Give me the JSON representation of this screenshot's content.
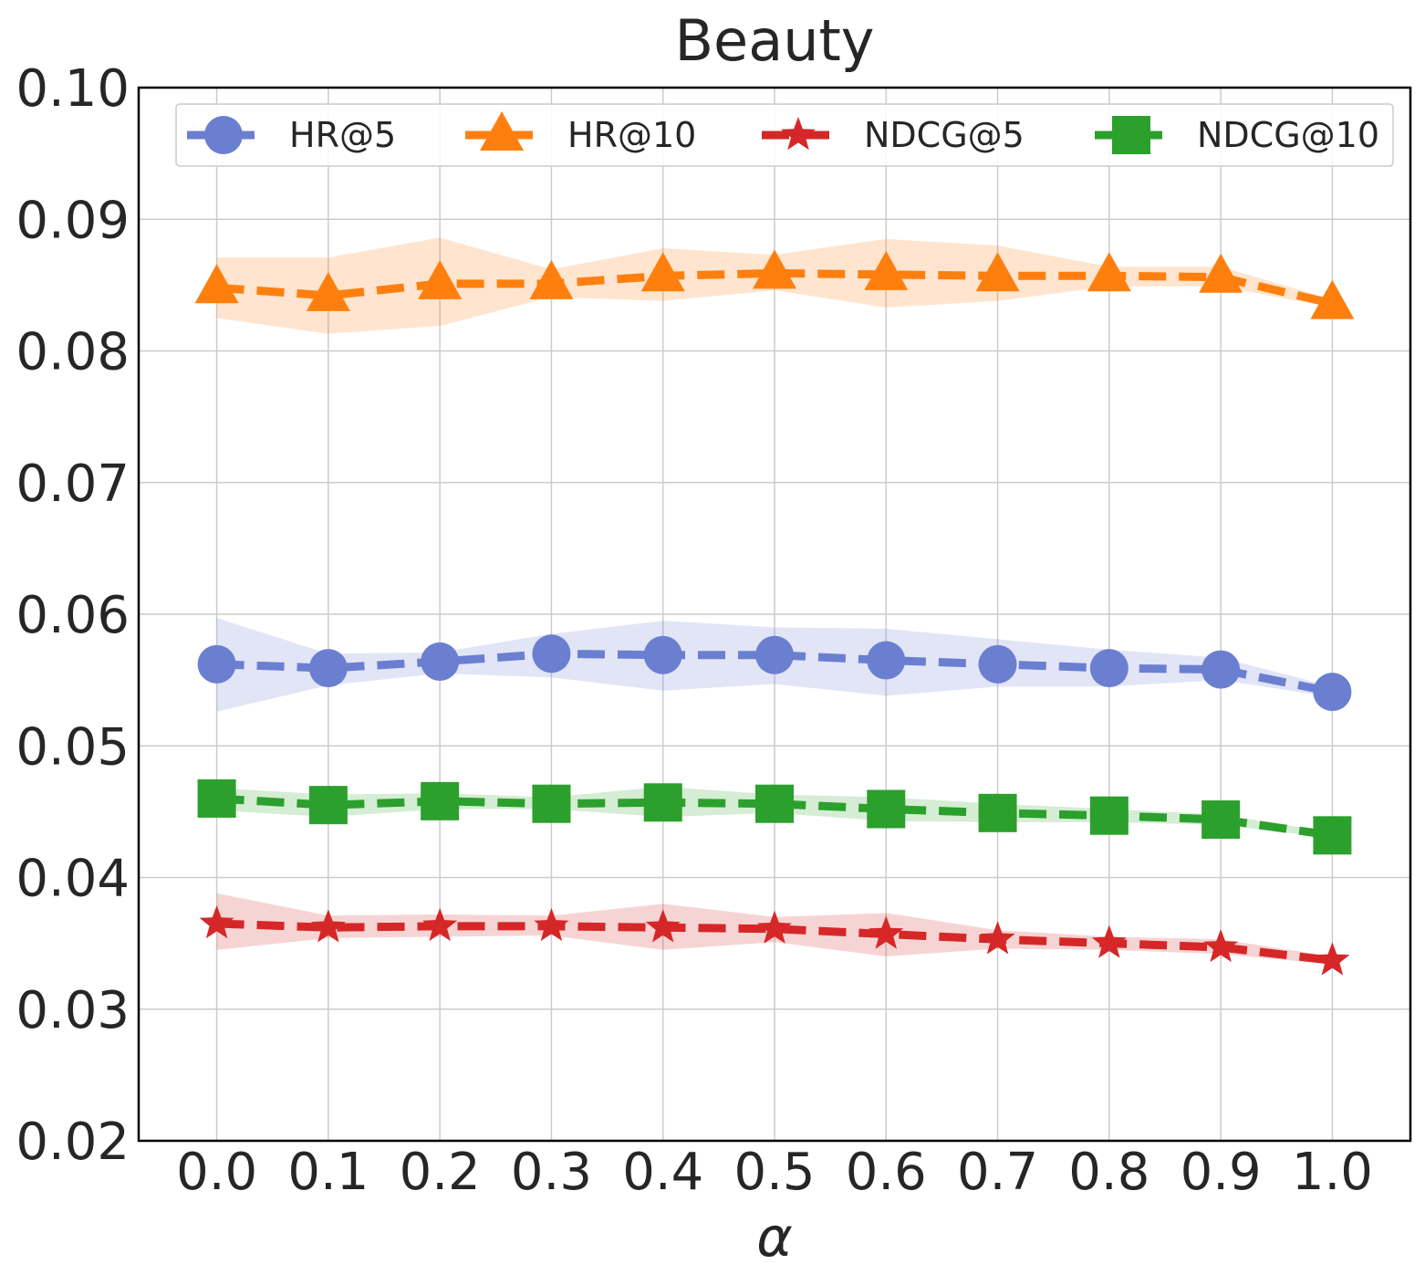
{
  "chart_data": {
    "type": "line",
    "title": "Beauty",
    "xlabel": "α",
    "ylabel": "",
    "x": [
      0.0,
      0.1,
      0.2,
      0.3,
      0.4,
      0.5,
      0.6,
      0.7,
      0.8,
      0.9,
      1.0
    ],
    "x_tick_labels": [
      "0.0",
      "0.1",
      "0.2",
      "0.3",
      "0.4",
      "0.5",
      "0.6",
      "0.7",
      "0.8",
      "0.9",
      "1.0"
    ],
    "y_ticks": [
      0.02,
      0.03,
      0.04,
      0.05,
      0.06,
      0.07,
      0.08,
      0.09,
      0.1
    ],
    "y_tick_labels": [
      "0.02",
      "0.03",
      "0.04",
      "0.05",
      "0.06",
      "0.07",
      "0.08",
      "0.09",
      "0.10"
    ],
    "ylim": [
      0.02,
      0.1
    ],
    "grid": true,
    "legend_position": "top",
    "series": [
      {
        "name": "HR@5",
        "marker": "circle",
        "color": "#6b7fd1",
        "values": [
          0.0562,
          0.0559,
          0.0564,
          0.057,
          0.0569,
          0.0569,
          0.0565,
          0.0562,
          0.0559,
          0.0558,
          0.0541
        ],
        "lower": [
          0.0526,
          0.0546,
          0.0555,
          0.0552,
          0.0542,
          0.0547,
          0.0538,
          0.0545,
          0.0545,
          0.055,
          0.0537
        ],
        "upper": [
          0.0597,
          0.057,
          0.0571,
          0.0585,
          0.0595,
          0.059,
          0.0589,
          0.0581,
          0.0573,
          0.0567,
          0.0545
        ]
      },
      {
        "name": "HR@10",
        "marker": "triangle",
        "color": "#ff7f0e",
        "values": [
          0.0848,
          0.0842,
          0.0851,
          0.0851,
          0.0857,
          0.0859,
          0.0858,
          0.0857,
          0.0857,
          0.0856,
          0.0836
        ],
        "lower": [
          0.0825,
          0.0813,
          0.0819,
          0.0841,
          0.0838,
          0.0846,
          0.0833,
          0.0838,
          0.0849,
          0.0849,
          0.0833
        ],
        "upper": [
          0.0871,
          0.0871,
          0.0886,
          0.0862,
          0.0878,
          0.0873,
          0.0885,
          0.088,
          0.0864,
          0.0864,
          0.0839
        ]
      },
      {
        "name": "NDCG@5",
        "marker": "star",
        "color": "#d62728",
        "values": [
          0.0365,
          0.0362,
          0.0363,
          0.0363,
          0.0362,
          0.0361,
          0.0357,
          0.0353,
          0.035,
          0.0347,
          0.0337
        ],
        "lower": [
          0.0345,
          0.0354,
          0.0355,
          0.0356,
          0.0345,
          0.0351,
          0.034,
          0.0346,
          0.0345,
          0.0342,
          0.0334
        ],
        "upper": [
          0.0388,
          0.0371,
          0.0372,
          0.0371,
          0.038,
          0.037,
          0.0373,
          0.036,
          0.0355,
          0.0353,
          0.034
        ]
      },
      {
        "name": "NDCG@10",
        "marker": "square",
        "color": "#2ca02c",
        "values": [
          0.046,
          0.0455,
          0.0458,
          0.0456,
          0.0457,
          0.0456,
          0.0452,
          0.0449,
          0.0447,
          0.0444,
          0.0432
        ],
        "lower": [
          0.0451,
          0.0446,
          0.0452,
          0.0452,
          0.0446,
          0.0449,
          0.0443,
          0.0442,
          0.0442,
          0.044,
          0.043
        ],
        "upper": [
          0.0468,
          0.0463,
          0.0464,
          0.0461,
          0.0469,
          0.0463,
          0.0461,
          0.0456,
          0.0452,
          0.0448,
          0.0434
        ]
      }
    ]
  }
}
